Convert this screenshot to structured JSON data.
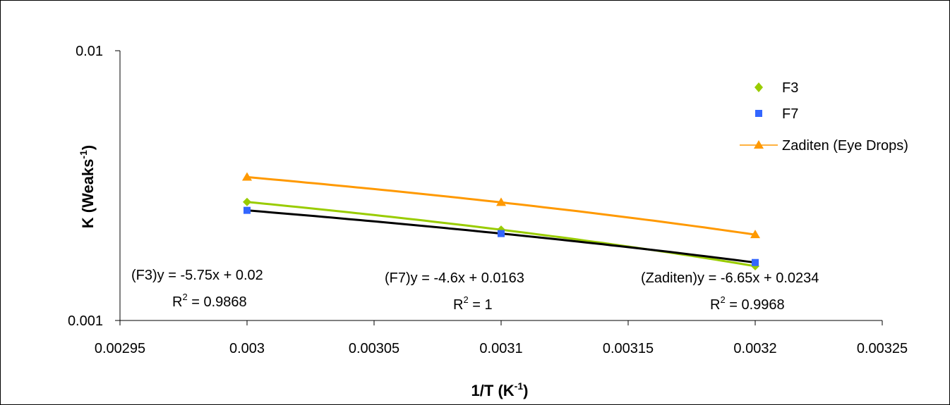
{
  "chart_data": {
    "type": "scatter",
    "xlabel": {
      "base": "1/T (K",
      "sup": "-1",
      "tail": ")"
    },
    "ylabel": {
      "base": "K (Weaks",
      "sup": "-1",
      "tail": ")"
    },
    "xlim": [
      0.00295,
      0.00325
    ],
    "ylim": [
      0.001,
      0.01
    ],
    "yscale": "log",
    "x_ticks": [
      "0.00295",
      "0.003",
      "0.00305",
      "0.0031",
      "0.00315",
      "0.0032",
      "0.00325"
    ],
    "y_ticks": [
      "0.001",
      "0.01"
    ],
    "grid": false,
    "legend_position": "top-right",
    "series": [
      {
        "name": "F3",
        "marker": "diamond",
        "color": "#99CC00",
        "trend_color": "#99CC00",
        "x": [
          0.003,
          0.0031,
          0.0032
        ],
        "y": [
          0.00275,
          0.00217,
          0.00159
        ]
      },
      {
        "name": "F7",
        "marker": "square",
        "color": "#3366FF",
        "trend_color": "#000000",
        "x": [
          0.003,
          0.0031,
          0.0032
        ],
        "y": [
          0.00256,
          0.0021,
          0.00164
        ]
      },
      {
        "name": "Zaditen (Eye Drops)",
        "marker": "triangle",
        "color": "#FF9900",
        "trend_color": "#FF9900",
        "x": [
          0.003,
          0.0031,
          0.0032
        ],
        "y": [
          0.0034,
          0.00274,
          0.00208
        ]
      }
    ],
    "annotations": [
      {
        "eq": "(F3)y = -5.75x + 0.02",
        "r2_value": " = 0.9868"
      },
      {
        "eq": "(F7)y = -4.6x + 0.0163",
        "r2_value": " = 1"
      },
      {
        "eq": "(Zaditen)y = -6.65x + 0.0234",
        "r2_value": " = 0.9968"
      }
    ],
    "r2_base": "R",
    "r2_sup": "2"
  }
}
